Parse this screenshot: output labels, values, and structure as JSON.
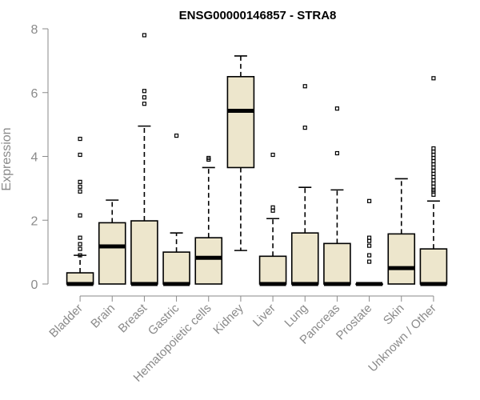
{
  "chart_data": {
    "type": "boxplot",
    "title": "ENSG00000146857 - STRA8",
    "xlabel": "",
    "ylabel": "Expression",
    "ylim": [
      0,
      8
    ],
    "yticks": [
      0,
      2,
      4,
      6,
      8
    ],
    "box_color": "#ede6cc",
    "groups": [
      {
        "name": "Bladder",
        "q1": 0,
        "median": 0,
        "q3": 0.35,
        "whisker_low": 0,
        "whisker_high": 0.9,
        "outliers": [
          0.9,
          1.1,
          1.25,
          1.45,
          2.15,
          2.9,
          3.05,
          3.2,
          4.05,
          4.55
        ]
      },
      {
        "name": "Brain",
        "q1": 0,
        "median": 1.18,
        "q3": 1.92,
        "whisker_low": 0,
        "whisker_high": 2.63,
        "outliers": []
      },
      {
        "name": "Breast",
        "q1": 0,
        "median": 0,
        "q3": 1.98,
        "whisker_low": 0,
        "whisker_high": 4.95,
        "outliers": [
          5.65,
          5.85,
          6.05,
          7.8
        ]
      },
      {
        "name": "Gastric",
        "q1": 0,
        "median": 0,
        "q3": 1.0,
        "whisker_low": 0,
        "whisker_high": 1.6,
        "outliers": [
          4.65
        ]
      },
      {
        "name": "Hematopoietic cells",
        "q1": 0,
        "median": 0.82,
        "q3": 1.45,
        "whisker_low": 0,
        "whisker_high": 3.65,
        "outliers": [
          3.9,
          3.95
        ]
      },
      {
        "name": "Kidney",
        "q1": 3.65,
        "median": 5.43,
        "q3": 6.5,
        "whisker_low": 1.05,
        "whisker_high": 7.15,
        "outliers": []
      },
      {
        "name": "Liver",
        "q1": 0,
        "median": 0,
        "q3": 0.87,
        "whisker_low": 0,
        "whisker_high": 2.05,
        "outliers": [
          2.3,
          2.4,
          4.05
        ]
      },
      {
        "name": "Lung",
        "q1": 0,
        "median": 0,
        "q3": 1.6,
        "whisker_low": 0,
        "whisker_high": 3.03,
        "outliers": [
          4.9,
          6.2
        ]
      },
      {
        "name": "Pancreas",
        "q1": 0,
        "median": 0,
        "q3": 1.27,
        "whisker_low": 0,
        "whisker_high": 2.95,
        "outliers": [
          4.1,
          5.5
        ]
      },
      {
        "name": "Prostate",
        "q1": 0,
        "median": 0,
        "q3": 0,
        "whisker_low": 0,
        "whisker_high": 0,
        "outliers": [
          0.7,
          0.9,
          1.2,
          1.35,
          1.45,
          2.6
        ]
      },
      {
        "name": "Skin",
        "q1": 0,
        "median": 0.5,
        "q3": 1.57,
        "whisker_low": 0,
        "whisker_high": 3.3,
        "outliers": []
      },
      {
        "name": "Unknown / Other",
        "q1": 0,
        "median": 0,
        "q3": 1.1,
        "whisker_low": 0,
        "whisker_high": 2.6,
        "outliers": [
          2.8,
          2.9,
          2.95,
          3.05,
          3.15,
          3.25,
          3.35,
          3.45,
          3.55,
          3.65,
          3.75,
          3.85,
          3.95,
          4.05,
          4.15,
          4.25,
          6.45
        ]
      }
    ]
  }
}
